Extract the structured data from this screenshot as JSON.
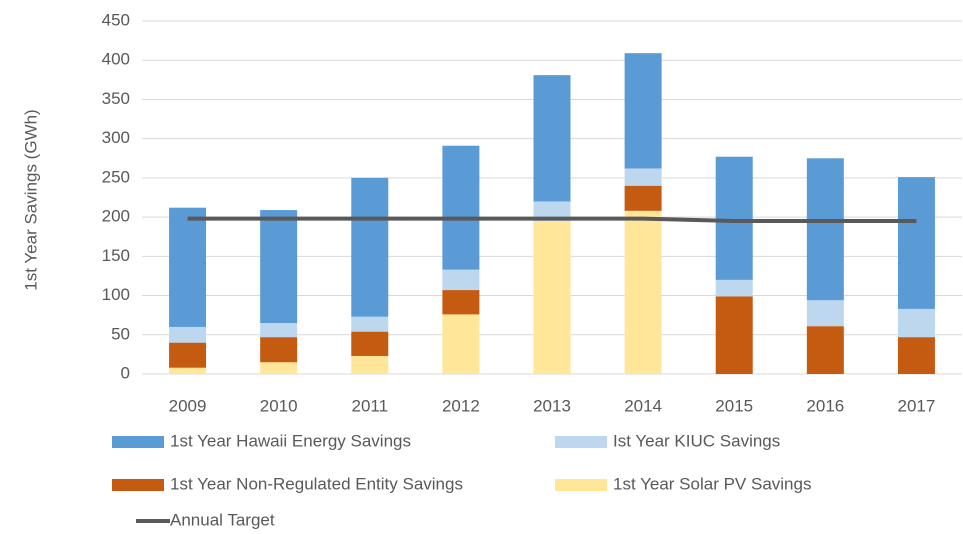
{
  "chart_data": {
    "type": "bar",
    "stacked": true,
    "y_axis_label": "1st Year Savings (GWh)",
    "categories": [
      "2009",
      "2010",
      "2011",
      "2012",
      "2013",
      "2014",
      "2015",
      "2016",
      "2017"
    ],
    "series": [
      {
        "name": "1st Year Solar PV Savings",
        "color": "#ffe699",
        "values": [
          8,
          15,
          23,
          76,
          195,
          208,
          0,
          0,
          0
        ]
      },
      {
        "name": "1st Year Non-Regulated Entity Savings",
        "color": "#c55a11",
        "values": [
          32,
          32,
          31,
          31,
          0,
          32,
          99,
          61,
          47
        ]
      },
      {
        "name": "Ist Year KIUC Savings",
        "color": "#bdd7ee",
        "values": [
          20,
          18,
          19,
          26,
          25,
          22,
          21,
          33,
          36
        ]
      },
      {
        "name": "1st Year Hawaii Energy Savings",
        "color": "#5b9bd5",
        "values": [
          152,
          144,
          177,
          158,
          161,
          147,
          157,
          181,
          168
        ]
      },
      {
        "name": "Annual Target",
        "type": "line",
        "color": "#595959",
        "values": [
          198,
          198,
          198,
          198,
          198,
          198,
          195,
          195,
          195
        ]
      }
    ],
    "ylim": [
      0,
      450
    ],
    "yticks": [
      0,
      50,
      100,
      150,
      200,
      250,
      300,
      350,
      400,
      450
    ],
    "grid": true
  }
}
